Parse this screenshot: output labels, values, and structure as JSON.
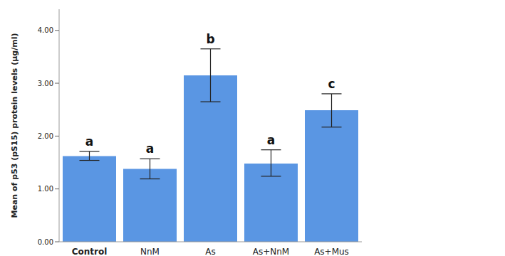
{
  "chart_data": {
    "type": "bar",
    "categories": [
      "Control",
      "NnM",
      "As",
      "As+NnM",
      "As+Mus"
    ],
    "values": [
      1.62,
      1.38,
      3.15,
      1.48,
      2.49
    ],
    "error_low": [
      1.54,
      1.19,
      2.65,
      1.24,
      2.17
    ],
    "error_high": [
      1.71,
      1.57,
      3.65,
      1.74,
      2.8
    ],
    "annotations": [
      "a",
      "a",
      "b",
      "a",
      "c"
    ],
    "color": "#5a96e3",
    "y_label": "Mean of p53 (pS15) protein levels (μg/ml)",
    "ylim": [
      0,
      4.4
    ],
    "yticks": [
      {
        "value": 0,
        "label": "0.00"
      },
      {
        "value": 1,
        "label": "1.00"
      },
      {
        "value": 2,
        "label": "2.00"
      },
      {
        "value": 3,
        "label": "3.00"
      },
      {
        "value": 4,
        "label": "4.00"
      }
    ],
    "grid": false
  }
}
